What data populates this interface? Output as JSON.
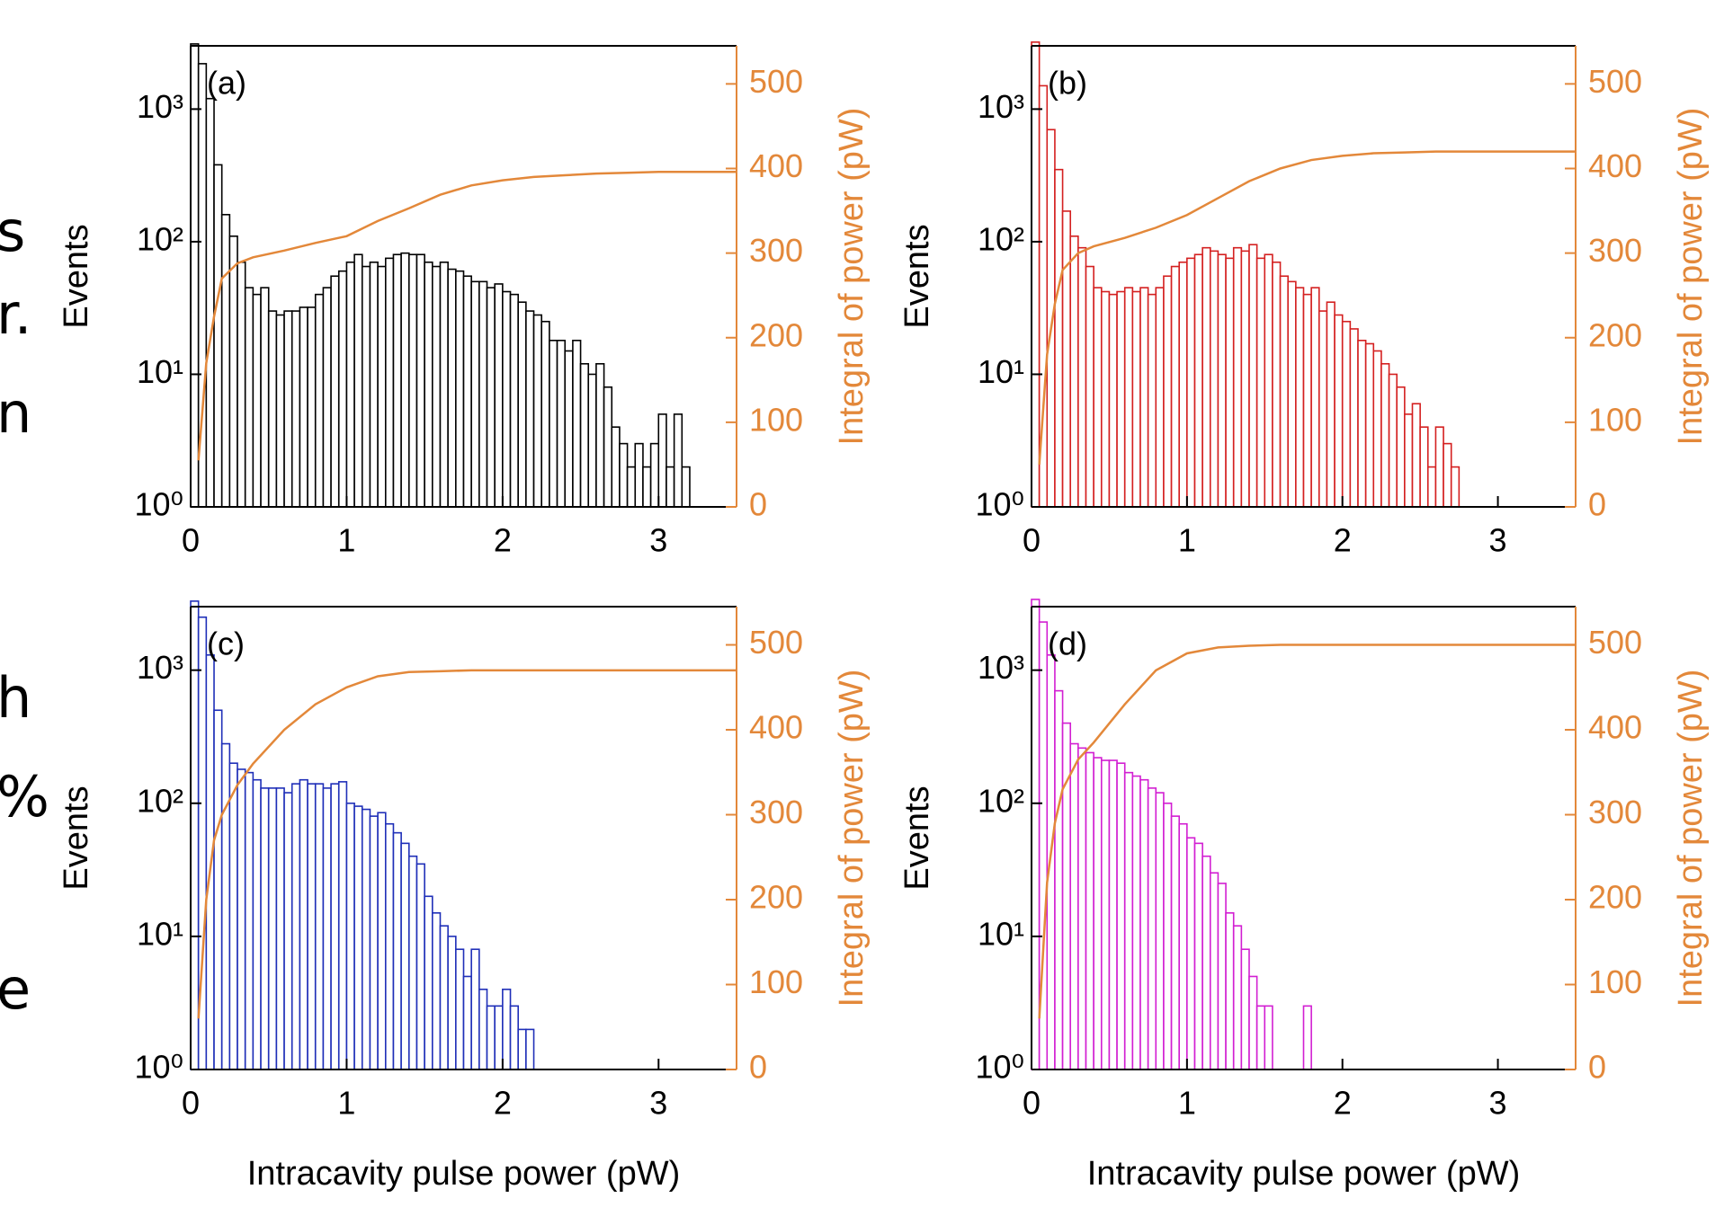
{
  "margin_text": [
    "s",
    "r.",
    "n",
    "h",
    "%",
    "e"
  ],
  "chart_data": [
    {
      "type": "histogram",
      "label": "(a)",
      "ylabel": "Events",
      "y2label": "Integral of power (pW)",
      "color": "#000000",
      "log_y": true,
      "bins": [
        0,
        0.05,
        0.1,
        0.15,
        0.2,
        0.25,
        0.3,
        0.35,
        0.4,
        0.45,
        0.5,
        0.55,
        0.6,
        0.65,
        0.7,
        0.75,
        0.8,
        0.85,
        0.9,
        0.95,
        1,
        1.05,
        1.1,
        1.15,
        1.2,
        1.25,
        1.3,
        1.35,
        1.4,
        1.45,
        1.5,
        1.55,
        1.6,
        1.65,
        1.7,
        1.75,
        1.8,
        1.85,
        1.9,
        1.95,
        2,
        2.05,
        2.1,
        2.15,
        2.2,
        2.25,
        2.3,
        2.35,
        2.4,
        2.45,
        2.5,
        2.55,
        2.6,
        2.65,
        2.7,
        2.75,
        2.8,
        2.85,
        2.9,
        2.95,
        3,
        3.05,
        3.1,
        3.15,
        3.2,
        3.25,
        3.3,
        3.35,
        3.4,
        3.45,
        3.5
      ],
      "counts": [
        3100,
        2200,
        1200,
        380,
        160,
        110,
        70,
        45,
        40,
        45,
        30,
        28,
        30,
        30,
        32,
        32,
        40,
        45,
        55,
        60,
        70,
        80,
        65,
        70,
        65,
        75,
        80,
        82,
        80,
        80,
        70,
        65,
        70,
        62,
        60,
        55,
        50,
        50,
        45,
        48,
        42,
        40,
        35,
        30,
        28,
        25,
        18,
        18,
        15,
        18,
        12,
        10,
        12,
        8,
        4,
        3,
        2,
        3,
        2,
        3,
        5,
        2,
        5,
        2,
        0,
        0,
        1,
        1,
        1,
        0
      ],
      "integral": {
        "color": "#e3883a",
        "axis": "y2",
        "x": [
          0.05,
          0.1,
          0.15,
          0.2,
          0.3,
          0.4,
          0.6,
          0.8,
          1.0,
          1.2,
          1.4,
          1.6,
          1.8,
          2.0,
          2.2,
          2.4,
          2.6,
          2.8,
          3.0,
          3.2,
          3.5
        ],
        "values": [
          55,
          170,
          225,
          270,
          288,
          295,
          303,
          312,
          320,
          338,
          353,
          369,
          380,
          386,
          390,
          392,
          394,
          395,
          396,
          396,
          396
        ]
      },
      "xlim": [
        0,
        3.5
      ],
      "xticks": [
        0,
        1,
        2,
        3
      ],
      "ylim": [
        1,
        3000
      ],
      "yticks": [
        {
          "value": 1,
          "label": "10⁰"
        },
        {
          "value": 10,
          "label": "10¹"
        },
        {
          "value": 100,
          "label": "10²"
        },
        {
          "value": 1000,
          "label": "10³"
        }
      ],
      "y2lim": [
        0,
        545
      ],
      "y2ticks": [
        0,
        100,
        200,
        300,
        400,
        500
      ]
    },
    {
      "type": "histogram",
      "label": "(b)",
      "ylabel": "Events",
      "y2label": "Integral of power (pW)",
      "color": "#d42020",
      "log_y": true,
      "bins": [
        0,
        0.05,
        0.1,
        0.15,
        0.2,
        0.25,
        0.3,
        0.35,
        0.4,
        0.45,
        0.5,
        0.55,
        0.6,
        0.65,
        0.7,
        0.75,
        0.8,
        0.85,
        0.9,
        0.95,
        1,
        1.05,
        1.1,
        1.15,
        1.2,
        1.25,
        1.3,
        1.35,
        1.4,
        1.45,
        1.5,
        1.55,
        1.6,
        1.65,
        1.7,
        1.75,
        1.8,
        1.85,
        1.9,
        1.95,
        2,
        2.05,
        2.1,
        2.15,
        2.2,
        2.25,
        2.3,
        2.35,
        2.4,
        2.45,
        2.5,
        2.55,
        2.6,
        2.65,
        2.7,
        2.75,
        2.8,
        2.85,
        2.9,
        2.95,
        3,
        3.05,
        3.1,
        3.15,
        3.2,
        3.25,
        3.3,
        3.35,
        3.4,
        3.45,
        3.5
      ],
      "counts": [
        3200,
        1500,
        700,
        350,
        170,
        110,
        90,
        65,
        45,
        42,
        40,
        42,
        45,
        42,
        45,
        40,
        45,
        55,
        65,
        70,
        75,
        80,
        90,
        85,
        80,
        75,
        90,
        85,
        95,
        75,
        80,
        70,
        55,
        50,
        45,
        40,
        45,
        30,
        35,
        28,
        25,
        22,
        18,
        17,
        15,
        12,
        10,
        8,
        5,
        6,
        4,
        2,
        4,
        3,
        2,
        1,
        1,
        1,
        1,
        0,
        0,
        0,
        1,
        0,
        0,
        0,
        0,
        0,
        1,
        0
      ],
      "integral": {
        "color": "#e3883a",
        "axis": "y2",
        "x": [
          0.05,
          0.1,
          0.15,
          0.2,
          0.3,
          0.4,
          0.6,
          0.8,
          1.0,
          1.2,
          1.4,
          1.6,
          1.8,
          2.0,
          2.2,
          2.4,
          2.6,
          2.8,
          3.0,
          3.2,
          3.5
        ],
        "values": [
          50,
          180,
          240,
          280,
          300,
          308,
          318,
          330,
          345,
          365,
          385,
          400,
          410,
          415,
          418,
          419,
          420,
          420,
          420,
          420,
          420
        ]
      },
      "xlim": [
        0,
        3.5
      ],
      "xticks": [
        0,
        1,
        2,
        3
      ],
      "ylim": [
        1,
        3000
      ],
      "yticks": [
        {
          "value": 1,
          "label": "10⁰"
        },
        {
          "value": 10,
          "label": "10¹"
        },
        {
          "value": 100,
          "label": "10²"
        },
        {
          "value": 1000,
          "label": "10³"
        }
      ],
      "y2lim": [
        0,
        545
      ],
      "y2ticks": [
        0,
        100,
        200,
        300,
        400,
        500
      ]
    },
    {
      "type": "histogram",
      "label": "(c)",
      "ylabel": "Events",
      "y2label": "Integral of power (pW)",
      "xlabel": "Intracavity pulse power (pW)",
      "color": "#1f2fb8",
      "log_y": true,
      "bins": [
        0,
        0.05,
        0.1,
        0.15,
        0.2,
        0.25,
        0.3,
        0.35,
        0.4,
        0.45,
        0.5,
        0.55,
        0.6,
        0.65,
        0.7,
        0.75,
        0.8,
        0.85,
        0.9,
        0.95,
        1,
        1.05,
        1.1,
        1.15,
        1.2,
        1.25,
        1.3,
        1.35,
        1.4,
        1.45,
        1.5,
        1.55,
        1.6,
        1.65,
        1.7,
        1.75,
        1.8,
        1.85,
        1.9,
        1.95,
        2,
        2.05,
        2.1,
        2.15,
        2.2,
        2.25,
        2.3,
        2.35,
        2.4,
        2.45,
        2.5,
        2.55,
        2.6,
        2.65,
        2.7,
        2.75,
        2.8,
        2.85,
        2.9,
        2.95,
        3,
        3.05,
        3.1,
        3.15,
        3.2,
        3.25,
        3.3,
        3.35,
        3.4,
        3.45,
        3.5
      ],
      "counts": [
        3300,
        2500,
        1300,
        500,
        280,
        200,
        180,
        170,
        150,
        130,
        130,
        130,
        120,
        140,
        150,
        140,
        140,
        130,
        140,
        145,
        100,
        95,
        90,
        80,
        85,
        70,
        60,
        50,
        40,
        35,
        20,
        15,
        12,
        10,
        8,
        5,
        8,
        4,
        3,
        3,
        4,
        3,
        2,
        2,
        0,
        0,
        1,
        0,
        0,
        0,
        0,
        0,
        1,
        0,
        0,
        0,
        0,
        0,
        0,
        0,
        0,
        0,
        0,
        0,
        0,
        0,
        0,
        0,
        0,
        0
      ],
      "integral": {
        "color": "#e3883a",
        "axis": "y2",
        "x": [
          0.05,
          0.1,
          0.15,
          0.2,
          0.3,
          0.4,
          0.6,
          0.8,
          1.0,
          1.2,
          1.4,
          1.6,
          1.8,
          2.0,
          2.2,
          2.4,
          2.6,
          2.8,
          3.0,
          3.2,
          3.5
        ],
        "values": [
          60,
          200,
          270,
          300,
          335,
          360,
          400,
          430,
          450,
          463,
          468,
          469,
          470,
          470,
          470,
          470,
          470,
          470,
          470,
          470,
          470
        ]
      },
      "xlim": [
        0,
        3.5
      ],
      "xticks": [
        0,
        1,
        2,
        3
      ],
      "ylim": [
        1,
        3000
      ],
      "yticks": [
        {
          "value": 1,
          "label": "10⁰"
        },
        {
          "value": 10,
          "label": "10¹"
        },
        {
          "value": 100,
          "label": "10²"
        },
        {
          "value": 1000,
          "label": "10³"
        }
      ],
      "y2lim": [
        0,
        545
      ],
      "y2ticks": [
        0,
        100,
        200,
        300,
        400,
        500
      ]
    },
    {
      "type": "histogram",
      "label": "(d)",
      "ylabel": "Events",
      "y2label": "Integral of power (pW)",
      "xlabel": "Intracavity pulse power (pW)",
      "color": "#d21fd2",
      "log_y": true,
      "bins": [
        0,
        0.05,
        0.1,
        0.15,
        0.2,
        0.25,
        0.3,
        0.35,
        0.4,
        0.45,
        0.5,
        0.55,
        0.6,
        0.65,
        0.7,
        0.75,
        0.8,
        0.85,
        0.9,
        0.95,
        1,
        1.05,
        1.1,
        1.15,
        1.2,
        1.25,
        1.3,
        1.35,
        1.4,
        1.45,
        1.5,
        1.55,
        1.6,
        1.65,
        1.7,
        1.75,
        1.8,
        1.85,
        1.9,
        1.95,
        2,
        2.05,
        2.1,
        2.15,
        2.2,
        2.25,
        2.3,
        2.35,
        2.4,
        2.45,
        2.5,
        2.55,
        2.6,
        2.65,
        2.7,
        2.75,
        2.8,
        2.85,
        2.9,
        2.95,
        3,
        3.05,
        3.1,
        3.15,
        3.2,
        3.25,
        3.3,
        3.35,
        3.4,
        3.45,
        3.5
      ],
      "counts": [
        3400,
        2300,
        1300,
        700,
        400,
        280,
        260,
        240,
        220,
        210,
        210,
        200,
        170,
        160,
        150,
        130,
        120,
        100,
        80,
        70,
        55,
        50,
        40,
        30,
        25,
        15,
        12,
        8,
        5,
        3,
        3,
        1,
        1,
        1,
        0,
        3,
        0,
        0,
        0,
        0,
        0,
        0,
        1,
        0,
        0,
        0,
        0,
        0,
        0,
        0,
        0,
        0,
        0,
        0,
        0,
        0,
        0,
        0,
        0,
        0,
        0,
        0,
        0,
        0,
        0,
        0,
        0,
        0,
        0,
        0
      ],
      "integral": {
        "color": "#e3883a",
        "axis": "y2",
        "x": [
          0.05,
          0.1,
          0.15,
          0.2,
          0.3,
          0.4,
          0.6,
          0.8,
          1.0,
          1.2,
          1.4,
          1.6,
          1.8,
          2.0,
          2.2,
          2.4,
          2.6,
          2.8,
          3.0,
          3.2,
          3.5
        ],
        "values": [
          60,
          220,
          290,
          330,
          365,
          385,
          430,
          470,
          490,
          497,
          499,
          500,
          500,
          500,
          500,
          500,
          500,
          500,
          500,
          500,
          500
        ]
      },
      "xlim": [
        0,
        3.5
      ],
      "xticks": [
        0,
        1,
        2,
        3
      ],
      "ylim": [
        1,
        3000
      ],
      "yticks": [
        {
          "value": 1,
          "label": "10⁰"
        },
        {
          "value": 10,
          "label": "10¹"
        },
        {
          "value": 100,
          "label": "10²"
        },
        {
          "value": 1000,
          "label": "10³"
        }
      ],
      "y2lim": [
        0,
        545
      ],
      "y2ticks": [
        0,
        100,
        200,
        300,
        400,
        500
      ]
    }
  ]
}
